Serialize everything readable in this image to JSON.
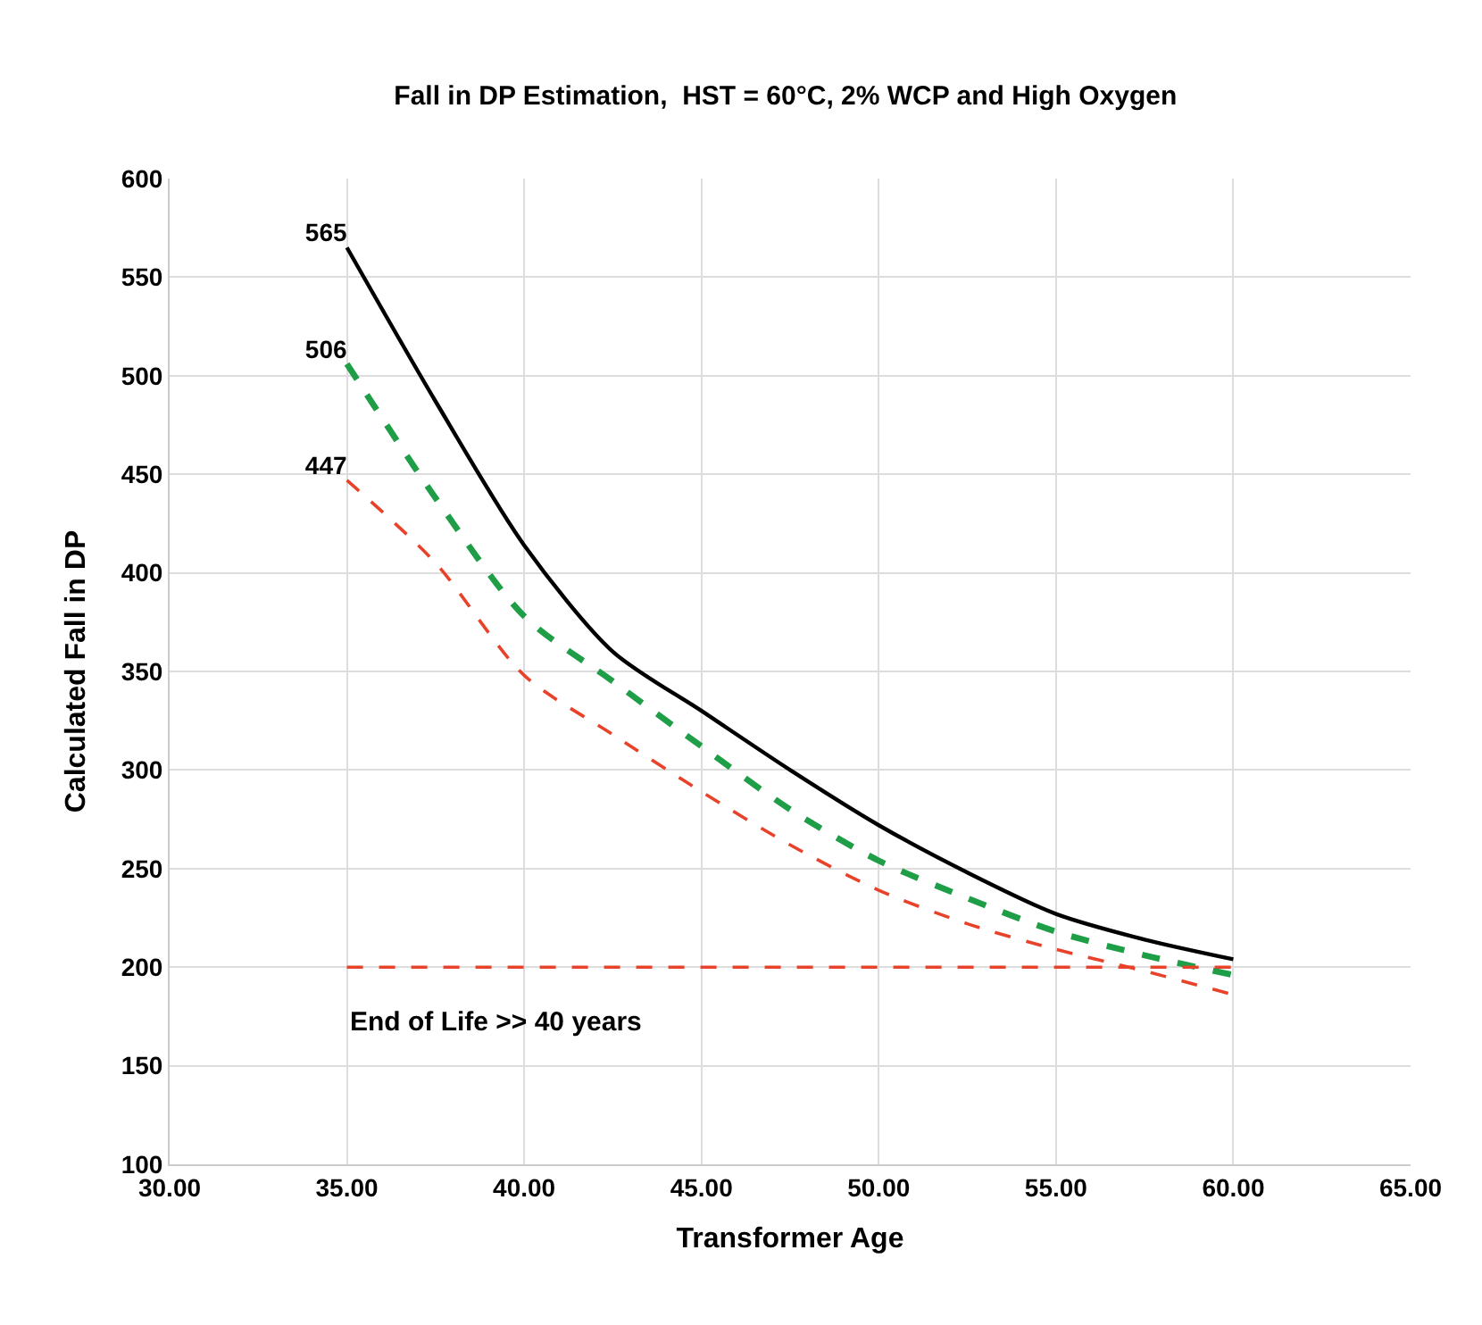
{
  "chart_data": {
    "type": "line",
    "title": "Fall in DP Estimation,  HST = 60°C, 2% WCP and High Oxygen",
    "xlabel": "Transformer Age",
    "ylabel": "Calculated Fall in DP",
    "x": [
      35,
      37.5,
      40,
      42.5,
      45,
      47.5,
      50,
      52.5,
      55,
      57.5,
      60
    ],
    "series": [
      {
        "color": "#000000",
        "line_style": "solid",
        "values": [
          565,
          487,
          414,
          360,
          330,
          300,
          272,
          248,
          227,
          214,
          204
        ],
        "value_labels": [
          "565",
          null,
          null,
          null,
          null,
          null,
          null,
          null,
          null,
          null,
          null
        ]
      },
      {
        "color": "#1f9e48",
        "line_style": "dashed",
        "values": [
          506,
          438,
          378,
          345,
          312,
          280,
          254,
          235,
          218,
          206,
          196
        ],
        "value_labels": [
          "506",
          null,
          null,
          null,
          null,
          null,
          null,
          null,
          null,
          null,
          null
        ]
      },
      {
        "color": "#e8432a",
        "line_style": "dashed",
        "values": [
          447,
          405,
          348,
          318,
          289,
          262,
          239,
          222,
          209,
          198,
          186
        ],
        "value_labels": [
          "447",
          null,
          null,
          null,
          null,
          null,
          null,
          null,
          null,
          null,
          null
        ]
      },
      {
        "color": "#e8432a",
        "line_style": "dashed",
        "x": [
          35,
          60
        ],
        "values": [
          200,
          200
        ]
      }
    ],
    "annotations": [
      "End of Life >> 40 years"
    ],
    "xlim": [
      30,
      65
    ],
    "xticks": [
      {
        "value": 30,
        "label": "30.00"
      },
      {
        "value": 35,
        "label": "35.00"
      },
      {
        "value": 40,
        "label": "40.00"
      },
      {
        "value": 45,
        "label": "45.00"
      },
      {
        "value": 50,
        "label": "50.00"
      },
      {
        "value": 55,
        "label": "55.00"
      },
      {
        "value": 60,
        "label": "60.00"
      },
      {
        "value": 65,
        "label": "65.00"
      }
    ],
    "ylim": [
      100,
      600
    ],
    "yticks": [
      100,
      150,
      200,
      250,
      300,
      350,
      400,
      450,
      500,
      550,
      600
    ],
    "grid": true,
    "marker": "none"
  }
}
